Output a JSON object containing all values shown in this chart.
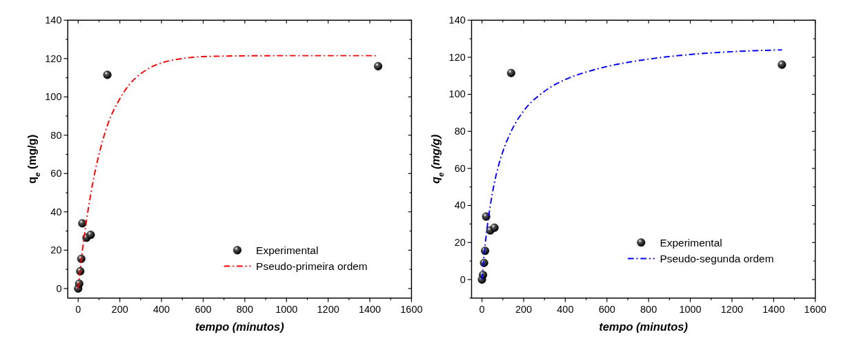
{
  "chart_data": [
    {
      "type": "scatter",
      "xlabel": "tempo (minutos)",
      "ylabel": "q$_{e}$ (mg/g)",
      "xlim": [
        -50,
        1600
      ],
      "ylim": [
        -5,
        140
      ],
      "xticks": [
        0,
        {
          "value": 100,
          "label": null
        },
        200,
        {
          "value": 300,
          "label": null
        },
        400,
        {
          "value": 500,
          "label": null
        },
        600,
        {
          "value": 700,
          "label": null
        },
        800,
        {
          "value": 900,
          "label": null
        },
        1000,
        {
          "value": 1100,
          "label": null
        },
        1200,
        {
          "value": 1300,
          "label": null
        },
        1400,
        {
          "value": 1500,
          "label": null
        },
        1600
      ],
      "yticks": [
        0,
        {
          "value": 10,
          "label": null
        },
        20,
        {
          "value": 30,
          "label": null
        },
        40,
        {
          "value": 50,
          "label": null
        },
        60,
        {
          "value": 70,
          "label": null
        },
        80,
        {
          "value": 90,
          "label": null
        },
        100,
        {
          "value": 110,
          "label": null
        },
        120,
        {
          "value": 130,
          "label": null
        },
        140
      ],
      "legend": "bottom right",
      "grid": false,
      "series": [
        {
          "name": "Experimental",
          "marker": "circle",
          "color": "#000000",
          "x": [
            0,
            5,
            10,
            15,
            20,
            40,
            60,
            140,
            1440
          ],
          "values": [
            0,
            2.5,
            9,
            15.5,
            34,
            26.5,
            28,
            111.5,
            116
          ]
        },
        {
          "name": "Pseudo-primeira ordem",
          "type": "line",
          "marker": "none",
          "line_style": "dashed",
          "color": "#ff0000",
          "x": [
            0,
            10,
            20,
            40,
            60,
            80,
            100,
            140,
            200,
            250,
            300,
            350,
            400,
            500,
            600,
            800,
            1000,
            1200,
            1430
          ],
          "values": [
            0,
            10,
            19.4,
            35.5,
            49,
            60.5,
            70,
            85,
            99,
            107,
            112,
            115.5,
            117.7,
            120,
            121,
            121.4,
            121.5,
            121.5,
            121.5
          ]
        }
      ]
    },
    {
      "type": "scatter",
      "xlabel": "tempo (minutos)",
      "ylabel": "q$_{e}$ (mg/g)",
      "xlim": [
        -50,
        1600
      ],
      "ylim": [
        -10,
        140
      ],
      "xticks": [
        0,
        {
          "value": 100,
          "label": null
        },
        200,
        {
          "value": 300,
          "label": null
        },
        400,
        {
          "value": 500,
          "label": null
        },
        600,
        {
          "value": 700,
          "label": null
        },
        800,
        {
          "value": 900,
          "label": null
        },
        1000,
        {
          "value": 1100,
          "label": null
        },
        1200,
        {
          "value": 1300,
          "label": null
        },
        1400,
        {
          "value": 1500,
          "label": null
        },
        1600
      ],
      "yticks": [
        {
          "value": -10,
          "label": null
        },
        0,
        {
          "value": 10,
          "label": null
        },
        20,
        {
          "value": 30,
          "label": null
        },
        40,
        {
          "value": 50,
          "label": null
        },
        60,
        {
          "value": 70,
          "label": null
        },
        80,
        {
          "value": 90,
          "label": null
        },
        100,
        {
          "value": 110,
          "label": null
        },
        120,
        {
          "value": 130,
          "label": null
        },
        140
      ],
      "legend": "bottom right",
      "grid": false,
      "series": [
        {
          "name": "Experimental",
          "marker": "circle",
          "color": "#000000",
          "x": [
            0,
            5,
            10,
            15,
            20,
            40,
            60,
            140,
            1440
          ],
          "values": [
            0,
            2.5,
            9,
            15.5,
            34,
            26.5,
            28,
            111.5,
            116
          ]
        },
        {
          "name": "Pseudo-segunda ordem",
          "type": "line",
          "marker": "none",
          "line_style": "dashed",
          "color": "#0000ff",
          "x": [
            0,
            5,
            10,
            20,
            40,
            60,
            80,
            100,
            140,
            200,
            300,
            400,
            500,
            600,
            800,
            1000,
            1200,
            1440
          ],
          "values": [
            0,
            6.8,
            13,
            23.6,
            40,
            52.4,
            61.7,
            69,
            80,
            91,
            101.6,
            108,
            112,
            115,
            119,
            121.5,
            123,
            124
          ]
        }
      ]
    }
  ]
}
